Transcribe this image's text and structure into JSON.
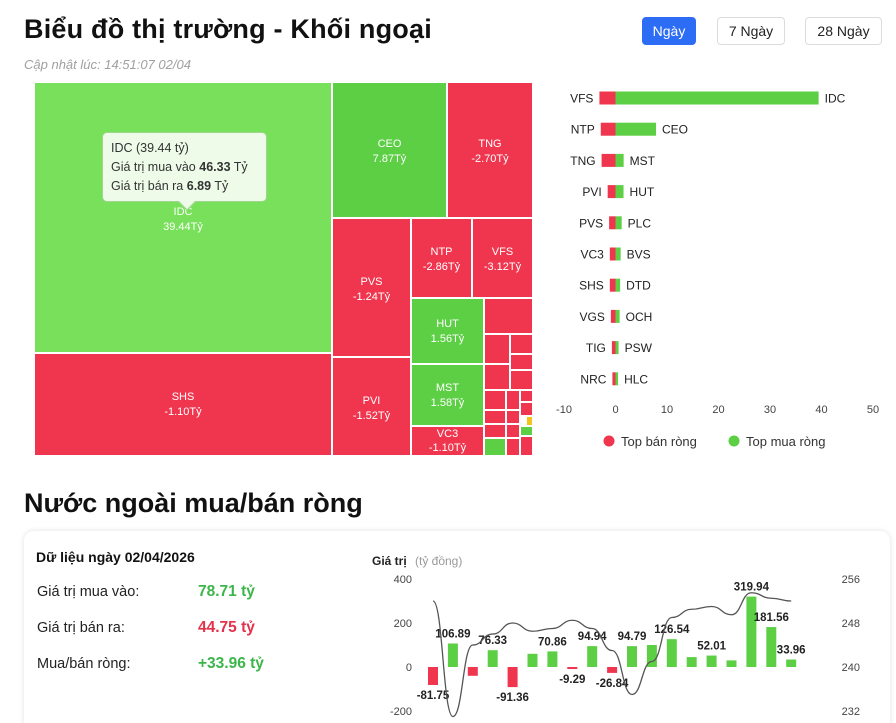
{
  "header": {
    "title": "Biểu đồ thị trường - Khối ngoại",
    "updated": "Cập nhật lúc: 14:51:07 02/04",
    "ranges": [
      "Ngày",
      "7 Ngày",
      "28 Ngày"
    ],
    "active_range": "Ngày"
  },
  "treemap": {
    "cells": [
      {
        "code": "IDC",
        "value": "39.44Tỷ"
      },
      {
        "code": "CEO",
        "value": "7.87Tỷ"
      },
      {
        "code": "TNG",
        "value": "-2.70Tỷ"
      },
      {
        "code": "PVS",
        "value": "-1.24Tỷ"
      },
      {
        "code": "NTP",
        "value": "-2.86Tỷ"
      },
      {
        "code": "VFS",
        "value": "-3.12Tỷ"
      },
      {
        "code": "HUT",
        "value": "1.56Tỷ"
      },
      {
        "code": "SHS",
        "value": "-1.10Tỷ"
      },
      {
        "code": "PVI",
        "value": "-1.52Tỷ"
      },
      {
        "code": "MST",
        "value": "1.58Tỷ"
      },
      {
        "code": "VC3",
        "value": "-1.10Tỷ"
      }
    ],
    "tooltip": {
      "title": "IDC (39.44 tỷ)",
      "buy_label": "Giá trị mua vào",
      "buy_value": "46.33",
      "sell_label": "Giá trị bán ra",
      "sell_value": "6.89",
      "unit": "Tỷ"
    }
  },
  "colors": {
    "buy": "#5ccf45",
    "sell": "#f0364f",
    "accent": "#2d6cf5",
    "line": "#555555"
  },
  "chart_data": [
    {
      "type": "bar",
      "orientation": "horizontal",
      "rows": [
        {
          "sell_code": "VFS",
          "sell": -3.12,
          "buy_code": "IDC",
          "buy": 39.44
        },
        {
          "sell_code": "NTP",
          "sell": -2.86,
          "buy_code": "CEO",
          "buy": 7.87
        },
        {
          "sell_code": "TNG",
          "sell": -2.7,
          "buy_code": "MST",
          "buy": 1.58
        },
        {
          "sell_code": "PVI",
          "sell": -1.52,
          "buy_code": "HUT",
          "buy": 1.56
        },
        {
          "sell_code": "PVS",
          "sell": -1.24,
          "buy_code": "PLC",
          "buy": 1.2
        },
        {
          "sell_code": "VC3",
          "sell": -1.1,
          "buy_code": "BVS",
          "buy": 1.0
        },
        {
          "sell_code": "SHS",
          "sell": -1.1,
          "buy_code": "DTD",
          "buy": 0.9
        },
        {
          "sell_code": "VGS",
          "sell": -0.9,
          "buy_code": "OCH",
          "buy": 0.8
        },
        {
          "sell_code": "TIG",
          "sell": -0.7,
          "buy_code": "PSW",
          "buy": 0.6
        },
        {
          "sell_code": "NRC",
          "sell": -0.6,
          "buy_code": "HLC",
          "buy": 0.5
        }
      ],
      "xticks": [
        -10,
        0,
        10,
        20,
        30,
        40,
        50
      ],
      "xlim": [
        -10,
        50
      ],
      "legend": [
        "Top bán ròng",
        "Top mua ròng"
      ],
      "legend_position": "bottom"
    },
    {
      "type": "bar",
      "title": "Nước ngoài mua/bán ròng",
      "ylabel": "Giá trị",
      "ylabel_unit": "(tỷ đồng)",
      "values": [
        -81.75,
        106.89,
        -40,
        76.33,
        -91.36,
        60,
        70.86,
        -9.29,
        94.94,
        -26.84,
        94.79,
        100,
        126.54,
        45,
        52.01,
        30,
        319.94,
        181.56,
        33.96
      ],
      "labels": [
        "-81.75",
        "106.89",
        "",
        "76.33",
        "-91.36",
        "",
        "70.86",
        "-9.29",
        "94.94",
        "-26.84",
        "94.79",
        "",
        "126.54",
        "",
        "52.01",
        "",
        "319.94",
        "181.56",
        "33.96"
      ],
      "ylim": [
        -200,
        400
      ],
      "yticks": [
        -200,
        0,
        200,
        400
      ],
      "y2lim": [
        232,
        256
      ],
      "y2ticks": [
        232,
        240,
        248,
        256
      ],
      "line": [
        252,
        231,
        244,
        246,
        248,
        246.5,
        247,
        248.5,
        247,
        243,
        235,
        241,
        249,
        250.5,
        251,
        249.5,
        253.5,
        252.5,
        252
      ]
    }
  ],
  "summary": {
    "date_label": "Dữ liệu ngày 02/04/2026",
    "buy_label": "Giá trị mua vào:",
    "buy_value": "78.71 tỷ",
    "sell_label": "Giá trị bán ra:",
    "sell_value": "44.75 tỷ",
    "net_label": "Mua/bán ròng:",
    "net_value": "+33.96 tỷ"
  }
}
